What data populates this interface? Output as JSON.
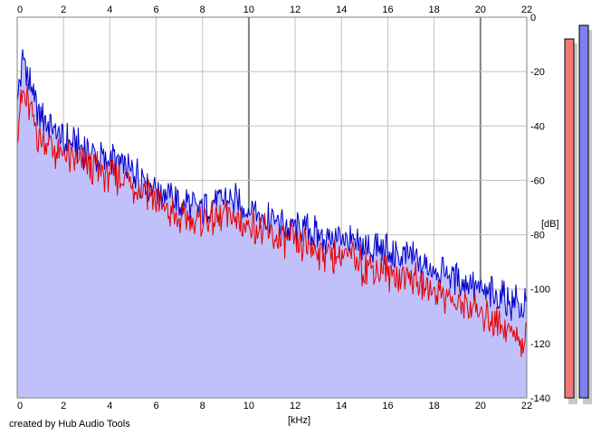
{
  "chart_data": {
    "type": "line",
    "title": "",
    "xlabel": "[kHz]",
    "ylabel": "[dB]",
    "xlim": [
      0,
      22
    ],
    "ylim": [
      -140,
      0
    ],
    "x_ticks": [
      0,
      2,
      4,
      6,
      8,
      10,
      12,
      14,
      16,
      18,
      20,
      22
    ],
    "x_tick_labels": [
      "0",
      "2",
      "4",
      "6",
      "8",
      "10",
      "12",
      "14",
      "16",
      "18",
      "20",
      "22"
    ],
    "y_ticks": [
      0,
      -20,
      -40,
      -60,
      -80,
      -100,
      -120,
      -140
    ],
    "y_tick_labels": [
      "0",
      "-20",
      "-40",
      "-60",
      "-80",
      "-100",
      "-120",
      "-140"
    ],
    "grid": true,
    "colors": {
      "blue_channel": "#0000cc",
      "red_channel": "#e60000",
      "fill": "#c0c0fa",
      "grid": "#c0c0c0",
      "major_grid": "#808080",
      "meter_left": "#f07878",
      "meter_right": "#8080f0"
    },
    "x": [
      0,
      0.25,
      0.5,
      0.75,
      1,
      1.5,
      2,
      2.5,
      3,
      3.5,
      4,
      4.5,
      5,
      5.5,
      6,
      6.5,
      7,
      7.5,
      8,
      8.5,
      9,
      9.5,
      10,
      10.5,
      11,
      11.5,
      12,
      12.5,
      13,
      13.5,
      14,
      14.5,
      15,
      15.5,
      16,
      16.5,
      17,
      17.5,
      18,
      18.5,
      19,
      19.5,
      20,
      20.5,
      21,
      21.5,
      22
    ],
    "series": [
      {
        "color": "#0000cc",
        "values": [
          -30,
          -15,
          -22,
          -30,
          -35,
          -40,
          -45,
          -46,
          -49,
          -51,
          -52,
          -54,
          -57,
          -59,
          -62,
          -64,
          -68,
          -69,
          -70,
          -68,
          -66,
          -68,
          -70,
          -72,
          -74,
          -76,
          -77,
          -79,
          -79,
          -81,
          -81,
          -83,
          -84,
          -84,
          -86,
          -87,
          -88,
          -90,
          -92,
          -93,
          -96,
          -97,
          -100,
          -101,
          -103,
          -105,
          -107
        ]
      },
      {
        "color": "#e60000",
        "values": [
          -40,
          -28,
          -32,
          -40,
          -44,
          -48,
          -50,
          -52,
          -55,
          -56,
          -57,
          -59,
          -62,
          -62,
          -67,
          -70,
          -74,
          -74,
          -75,
          -73,
          -72,
          -74,
          -76,
          -78,
          -80,
          -82,
          -82,
          -84,
          -85,
          -87,
          -87,
          -89,
          -91,
          -91,
          -93,
          -94,
          -95,
          -98,
          -100,
          -102,
          -105,
          -106,
          -109,
          -110,
          -113,
          -116,
          -118
        ]
      }
    ],
    "level_meters": {
      "left": -8,
      "right": -3
    }
  },
  "credit": "created by Hub Audio Tools"
}
